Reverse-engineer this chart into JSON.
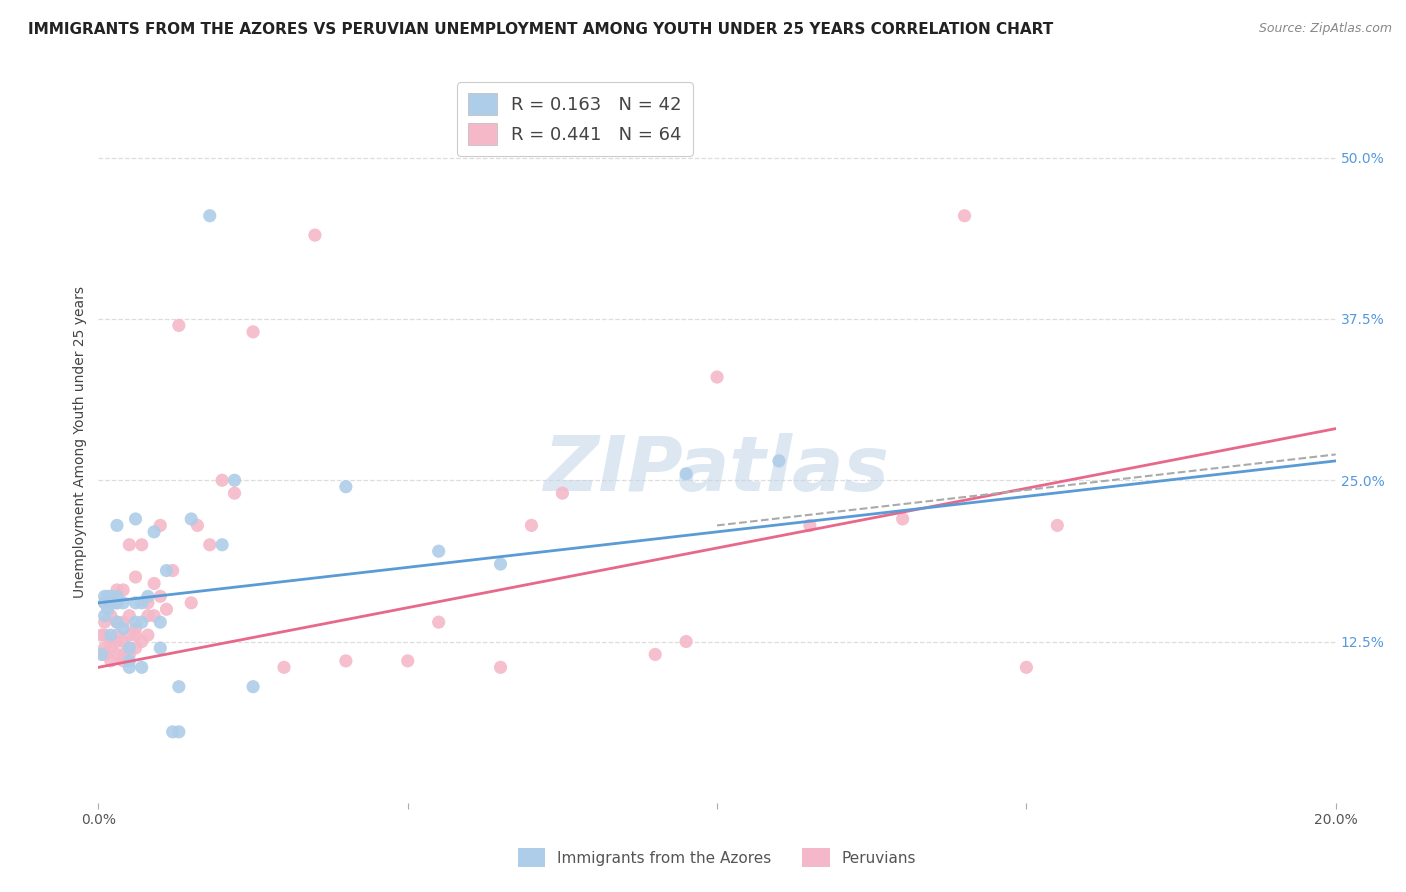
{
  "title": "IMMIGRANTS FROM THE AZORES VS PERUVIAN UNEMPLOYMENT AMONG YOUTH UNDER 25 YEARS CORRELATION CHART",
  "source": "Source: ZipAtlas.com",
  "ylabel": "Unemployment Among Youth under 25 years",
  "xlim": [
    0.0,
    0.2
  ],
  "ylim": [
    0.0,
    0.56
  ],
  "xticks": [
    0.0,
    0.05,
    0.1,
    0.15,
    0.2
  ],
  "xtick_labels": [
    "0.0%",
    "",
    "",
    "",
    "20.0%"
  ],
  "yticks_right": [
    0.125,
    0.25,
    0.375,
    0.5
  ],
  "ytick_labels_right": [
    "12.5%",
    "25.0%",
    "37.5%",
    "50.0%"
  ],
  "legend_label_bottom1": "Immigrants from the Azores",
  "legend_label_bottom2": "Peruvians",
  "watermark": "ZIPatlas",
  "blue_scatter_x": [
    0.0005,
    0.001,
    0.001,
    0.001,
    0.0015,
    0.0015,
    0.002,
    0.002,
    0.002,
    0.003,
    0.003,
    0.003,
    0.003,
    0.004,
    0.004,
    0.005,
    0.005,
    0.005,
    0.006,
    0.006,
    0.006,
    0.007,
    0.007,
    0.007,
    0.008,
    0.009,
    0.01,
    0.01,
    0.011,
    0.012,
    0.013,
    0.013,
    0.015,
    0.018,
    0.02,
    0.022,
    0.025,
    0.04,
    0.055,
    0.065,
    0.095,
    0.11
  ],
  "blue_scatter_y": [
    0.115,
    0.145,
    0.155,
    0.16,
    0.15,
    0.16,
    0.13,
    0.155,
    0.16,
    0.14,
    0.155,
    0.215,
    0.16,
    0.135,
    0.155,
    0.105,
    0.11,
    0.12,
    0.14,
    0.155,
    0.22,
    0.105,
    0.14,
    0.155,
    0.16,
    0.21,
    0.12,
    0.14,
    0.18,
    0.055,
    0.055,
    0.09,
    0.22,
    0.455,
    0.2,
    0.25,
    0.09,
    0.245,
    0.195,
    0.185,
    0.255,
    0.265
  ],
  "pink_scatter_x": [
    0.0005,
    0.001,
    0.001,
    0.001,
    0.001,
    0.001,
    0.002,
    0.002,
    0.002,
    0.002,
    0.003,
    0.003,
    0.003,
    0.003,
    0.003,
    0.003,
    0.004,
    0.004,
    0.004,
    0.004,
    0.004,
    0.005,
    0.005,
    0.005,
    0.005,
    0.005,
    0.006,
    0.006,
    0.006,
    0.006,
    0.007,
    0.007,
    0.008,
    0.008,
    0.008,
    0.009,
    0.009,
    0.01,
    0.01,
    0.011,
    0.012,
    0.013,
    0.015,
    0.016,
    0.018,
    0.02,
    0.022,
    0.025,
    0.03,
    0.035,
    0.04,
    0.05,
    0.055,
    0.065,
    0.07,
    0.075,
    0.09,
    0.095,
    0.1,
    0.115,
    0.13,
    0.14,
    0.15,
    0.155
  ],
  "pink_scatter_y": [
    0.13,
    0.115,
    0.12,
    0.13,
    0.14,
    0.155,
    0.11,
    0.12,
    0.125,
    0.145,
    0.115,
    0.125,
    0.13,
    0.14,
    0.155,
    0.165,
    0.11,
    0.115,
    0.125,
    0.14,
    0.165,
    0.115,
    0.12,
    0.13,
    0.145,
    0.2,
    0.12,
    0.13,
    0.135,
    0.175,
    0.125,
    0.2,
    0.13,
    0.145,
    0.155,
    0.145,
    0.17,
    0.16,
    0.215,
    0.15,
    0.18,
    0.37,
    0.155,
    0.215,
    0.2,
    0.25,
    0.24,
    0.365,
    0.105,
    0.44,
    0.11,
    0.11,
    0.14,
    0.105,
    0.215,
    0.24,
    0.115,
    0.125,
    0.33,
    0.215,
    0.22,
    0.455,
    0.105,
    0.215
  ],
  "blue_line_x": [
    0.0,
    0.2
  ],
  "blue_line_y": [
    0.155,
    0.265
  ],
  "pink_line_x": [
    0.0,
    0.2
  ],
  "pink_line_y": [
    0.105,
    0.29
  ],
  "gray_line_x": [
    0.1,
    0.2
  ],
  "gray_line_y": [
    0.215,
    0.27
  ],
  "scatter_size": 90,
  "blue_color": "#aecde8",
  "pink_color": "#f4b8c8",
  "blue_line_color": "#5b9bd5",
  "pink_line_color": "#e8688a",
  "gray_line_color": "#aaaaaa",
  "background_color": "#ffffff",
  "grid_color": "#dddddd",
  "title_fontsize": 11,
  "source_fontsize": 9,
  "axis_fontsize": 10,
  "watermark_color": "#c0d5e8",
  "watermark_fontsize": 55,
  "legend_R_color": "#4472c4",
  "legend_N_color": "#4472c4"
}
